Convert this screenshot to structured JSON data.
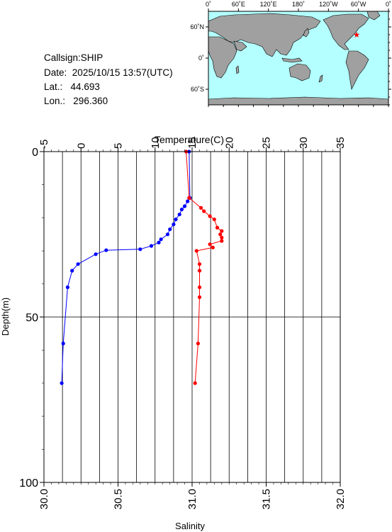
{
  "station": {
    "callsign_label": "Callsign:",
    "callsign": "SHIP",
    "date_label": "Date:",
    "date": "2025/10/15 13:57(UTC)",
    "lat_label": "Lat.:",
    "lat": "44.693",
    "lon_label": "Lon.:",
    "lon": "296.360"
  },
  "map": {
    "lon_ticks": [
      "0˚",
      "60˚E",
      "120˚E",
      "180˚",
      "120˚W",
      "60˚W",
      "0˚"
    ],
    "lat_ticks": [
      "60˚N",
      "0˚",
      "60˚S"
    ],
    "ocean_color": "#b4ffff",
    "land_color": "#a0a0a0",
    "marker": {
      "lon": 296.36,
      "lat": 44.693,
      "symbol": "star",
      "color": "#ff0000"
    }
  },
  "chart_data": {
    "type": "line",
    "top_axis": {
      "label": "Temperature(C)",
      "min": -5,
      "max": 35,
      "ticks": [
        "-5",
        "0",
        "5",
        "10",
        "15",
        "20",
        "25",
        "30",
        "35"
      ]
    },
    "bottom_axis": {
      "label": "Salinity",
      "min": 30.0,
      "max": 32.0,
      "ticks": [
        "30.0",
        "30.5",
        "31.0",
        "31.5",
        "32.0"
      ]
    },
    "y_axis": {
      "label": "Depth(m)",
      "min": 0,
      "max": 100,
      "inverted": true,
      "ticks": [
        "0",
        "50",
        "100"
      ]
    },
    "grid": true,
    "series": [
      {
        "color": "#0000ff",
        "axis": "top",
        "points": [
          [
            14.6,
            0
          ],
          [
            14.7,
            14
          ],
          [
            14.4,
            15
          ],
          [
            14.0,
            16.5
          ],
          [
            13.6,
            17.5
          ],
          [
            13.3,
            19
          ],
          [
            12.8,
            20.5
          ],
          [
            12.5,
            22
          ],
          [
            12.0,
            23.5
          ],
          [
            11.7,
            25
          ],
          [
            10.8,
            26.5
          ],
          [
            10.5,
            27.5
          ],
          [
            9.5,
            28.5
          ],
          [
            8.0,
            29.5
          ],
          [
            3.4,
            29.8
          ],
          [
            2.0,
            31
          ],
          [
            -0.4,
            34
          ],
          [
            -1.2,
            36
          ],
          [
            -1.8,
            41
          ],
          [
            -2.4,
            58
          ],
          [
            -2.6,
            70
          ]
        ]
      },
      {
        "color": "#ff0000",
        "axis": "bottom",
        "points": [
          [
            30.96,
            0
          ],
          [
            30.98,
            14
          ],
          [
            31.06,
            17
          ],
          [
            31.08,
            18
          ],
          [
            31.12,
            19.5
          ],
          [
            31.15,
            20.5
          ],
          [
            31.17,
            23
          ],
          [
            31.2,
            24
          ],
          [
            31.19,
            25
          ],
          [
            31.2,
            26
          ],
          [
            31.2,
            27
          ],
          [
            31.12,
            28
          ],
          [
            31.14,
            29
          ],
          [
            31.03,
            30
          ],
          [
            31.05,
            34
          ],
          [
            31.05,
            36
          ],
          [
            31.05,
            41
          ],
          [
            31.05,
            44
          ],
          [
            31.04,
            58
          ],
          [
            31.02,
            70
          ]
        ]
      }
    ]
  }
}
